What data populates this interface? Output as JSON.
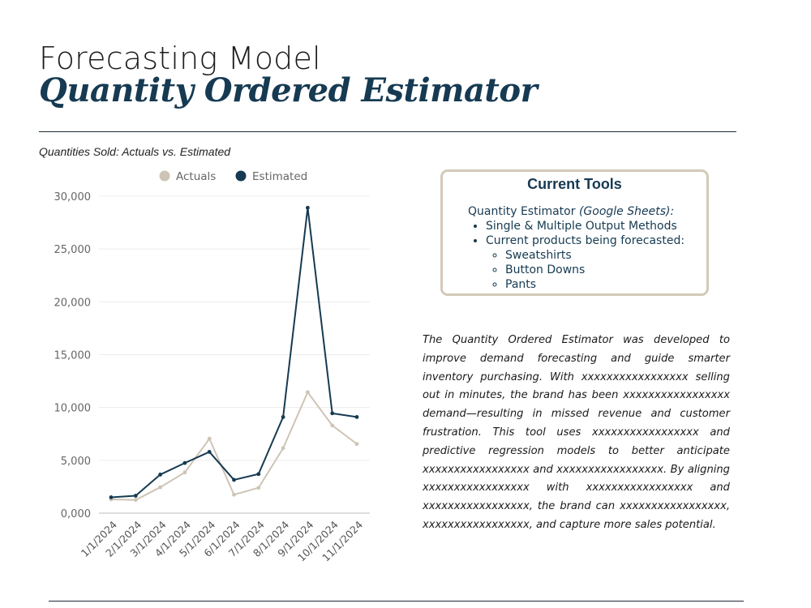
{
  "header": {
    "title_line1": "Forecasting Model",
    "title_line2": "Quantity Ordered Estimator"
  },
  "chart_subtitle": "Quantities Sold: Actuals vs. Estimated",
  "chart_data": {
    "type": "line",
    "title": "Quantities Sold: Actuals vs. Estimated",
    "categories": [
      "1/1/2024",
      "2/1/2024",
      "3/1/2024",
      "4/1/2024",
      "5/1/2024",
      "6/1/2024",
      "7/1/2024",
      "8/1/2024",
      "9/1/2024",
      "10/1/2024",
      "11/1/2024"
    ],
    "series": [
      {
        "name": "Actuals",
        "color": "#cdc4b5",
        "values": [
          1300,
          1250,
          2450,
          3850,
          7050,
          1750,
          2400,
          6150,
          11450,
          8300,
          6550
        ]
      },
      {
        "name": "Estimated",
        "color": "#163a52",
        "values": [
          1500,
          1650,
          3650,
          4750,
          5800,
          3150,
          3700,
          9100,
          28900,
          9450,
          9100
        ]
      }
    ],
    "ylim": [
      0,
      30000
    ],
    "yticks": [
      "0,000",
      "5,000",
      "10,000",
      "15,000",
      "20,000",
      "25,000",
      "30,000"
    ],
    "ytick_values": [
      0,
      5000,
      10000,
      15000,
      20000,
      25000,
      30000
    ],
    "legend_position": "top",
    "grid": true,
    "xlabel": "",
    "ylabel": ""
  },
  "tools": {
    "title": "Current Tools",
    "intro": "Quantity Estimator ",
    "intro_italic": "(Google Sheets):",
    "bullets": [
      "Single & Multiple Output Methods",
      "Current products being forecasted:"
    ],
    "sub_bullets": [
      "Sweatshirts",
      "Button Downs",
      "Pants"
    ]
  },
  "description": "The Quantity Ordered Estimator was developed to improve demand forecasting and guide smarter inventory purchasing. With xxxxxxxxxxxxxxxxx selling out in minutes, the brand has been xxxxxxxxxxxxxxxxx demand—resulting in missed revenue and customer frustration. This tool uses xxxxxxxxxxxxxxxxx and predictive regression models to better anticipate xxxxxxxxxxxxxxxxx and xxxxxxxxxxxxxxxxx. By aligning xxxxxxxxxxxxxxxxx with xxxxxxxxxxxxxxxxx and xxxxxxxxxxxxxxxxx, the brand can xxxxxxxxxxxxxxxxx, xxxxxxxxxxxxxxxxx, and capture more sales potential."
}
